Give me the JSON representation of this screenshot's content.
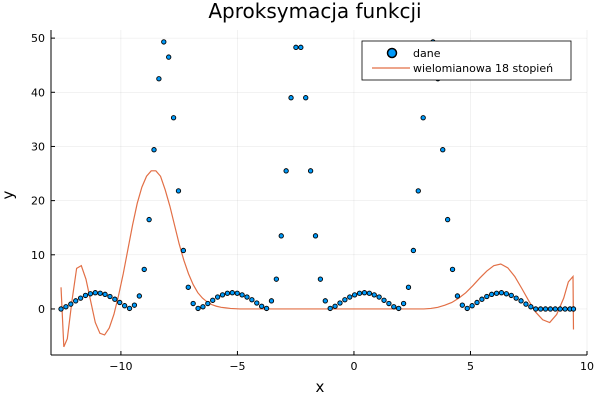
{
  "chart_data": {
    "type": "scatter",
    "title": "Aproksymacja funkcji",
    "xlabel": "x",
    "ylabel": "y",
    "xlim": [
      -13.0,
      10.0
    ],
    "ylim": [
      -8.5,
      51.5
    ],
    "xticks": [
      -10,
      -5,
      0,
      5,
      10
    ],
    "xtick_labels": [
      "−10",
      "−5",
      "0",
      "5",
      "10"
    ],
    "yticks": [
      0,
      10,
      20,
      30,
      40,
      50
    ],
    "ytick_labels": [
      "0",
      "10",
      "20",
      "30",
      "40",
      "50"
    ],
    "grid": true,
    "legend_position": "top-right",
    "colors": {
      "dane": "#009AFA",
      "fit": "#E26F46",
      "marker_edge": "#000000"
    },
    "series": [
      {
        "name": "dane",
        "kind": "scatter",
        "x": [
          -12.57,
          -12.36,
          -12.15,
          -11.94,
          -11.73,
          -11.52,
          -11.31,
          -11.1,
          -10.89,
          -10.68,
          -10.47,
          -10.26,
          -10.05,
          -9.84,
          -9.63,
          -9.42,
          -9.21,
          -9.0,
          -8.79,
          -8.58,
          -8.37,
          -8.16,
          -7.95,
          -7.74,
          -7.53,
          -7.32,
          -7.11,
          -6.9,
          -6.69,
          -6.48,
          -6.27,
          -6.06,
          -5.85,
          -5.64,
          -5.43,
          -5.22,
          -5.01,
          -4.8,
          -4.59,
          -4.38,
          -4.17,
          -3.96,
          -3.75,
          -3.54,
          -3.33,
          -3.12,
          -2.91,
          -2.7,
          -2.49,
          -2.28,
          -2.07,
          -1.86,
          -1.65,
          -1.44,
          -1.23,
          -1.02,
          -0.81,
          -0.6,
          -0.39,
          -0.18,
          0.03,
          0.24,
          0.45,
          0.66,
          0.87,
          1.08,
          1.29,
          1.5,
          1.71,
          1.92,
          2.13,
          2.34,
          2.55,
          2.76,
          2.97,
          3.18,
          3.39,
          3.6,
          3.81,
          4.02,
          4.23,
          4.44,
          4.65,
          4.86,
          5.07,
          5.28,
          5.49,
          5.7,
          5.91,
          6.12,
          6.33,
          6.54,
          6.75,
          6.96,
          7.17,
          7.38,
          7.59,
          7.8,
          8.01,
          8.22,
          8.43,
          8.64,
          8.85,
          9.06,
          9.27,
          9.42
        ],
        "y": [
          0,
          0.4,
          0.9,
          1.5,
          2.0,
          2.5,
          2.8,
          3.0,
          2.9,
          2.7,
          2.3,
          1.8,
          1.2,
          0.6,
          0.1,
          0.7,
          2.4,
          7.3,
          16.5,
          29.4,
          42.5,
          49.3,
          46.5,
          35.3,
          21.8,
          10.8,
          4.0,
          1.0,
          0.1,
          0.4,
          1.0,
          1.6,
          2.2,
          2.6,
          2.9,
          3.0,
          2.9,
          2.6,
          2.2,
          1.7,
          1.1,
          0.5,
          0.1,
          1.5,
          5.5,
          13.5,
          25.5,
          39.0,
          48.3,
          48.3,
          39.0,
          25.5,
          13.5,
          5.5,
          1.5,
          0.1,
          0.5,
          1.1,
          1.7,
          2.2,
          2.6,
          2.9,
          3.0,
          2.9,
          2.6,
          2.2,
          1.6,
          1.0,
          0.4,
          0.1,
          1.0,
          4.0,
          10.8,
          21.8,
          35.3,
          46.5,
          49.3,
          42.5,
          29.4,
          16.5,
          7.3,
          2.4,
          0.7,
          0.1,
          0.6,
          1.2,
          1.8,
          2.3,
          2.7,
          2.9,
          3.0,
          2.8,
          2.5,
          2.0,
          1.5,
          0.9,
          0.4,
          0.0,
          0,
          0,
          0,
          0,
          0,
          0,
          0,
          0
        ]
      },
      {
        "name": "wielomianowa 18 stopień",
        "kind": "line",
        "x": [
          -12.57,
          -12.45,
          -12.3,
          -12.1,
          -11.9,
          -11.7,
          -11.5,
          -11.3,
          -11.1,
          -10.9,
          -10.7,
          -10.5,
          -10.3,
          -10.1,
          -9.9,
          -9.7,
          -9.5,
          -9.3,
          -9.1,
          -8.9,
          -8.7,
          -8.5,
          -8.3,
          -8.1,
          -7.9,
          -7.7,
          -7.5,
          -7.3,
          -7.1,
          -6.9,
          -6.7,
          -6.5,
          -6.3,
          -6.1,
          -5.9,
          -5.7,
          -5.5,
          -5.3,
          -5.1,
          -4.9,
          -4.7,
          -4.5,
          -4.3,
          -4.1,
          -3.9,
          -3.7,
          -3.5,
          -3.3,
          -3.1,
          -2.9,
          -2.7,
          -2.5,
          -2.0,
          -1.5,
          -1.0,
          -0.5,
          0.0,
          0.5,
          1.0,
          1.5,
          2.0,
          2.5,
          3.0,
          3.3,
          3.6,
          3.9,
          4.2,
          4.5,
          4.8,
          5.1,
          5.4,
          5.7,
          6.0,
          6.3,
          6.6,
          6.9,
          7.2,
          7.5,
          7.8,
          8.1,
          8.4,
          8.7,
          9.0,
          9.2,
          9.4,
          9.42
        ],
        "y": [
          4.0,
          -7.0,
          -5.5,
          1.5,
          7.5,
          8.0,
          5.5,
          1.5,
          -2.5,
          -4.5,
          -4.8,
          -3.5,
          -1.0,
          2.5,
          6.5,
          11.0,
          15.5,
          19.5,
          22.5,
          24.5,
          25.5,
          25.5,
          24.5,
          22.0,
          19.0,
          15.5,
          12.0,
          9.0,
          6.5,
          4.5,
          3.0,
          2.0,
          1.3,
          0.8,
          0.5,
          0.3,
          0.2,
          0.1,
          0.05,
          0,
          0,
          0,
          0,
          0,
          0,
          0,
          0,
          0,
          0,
          0,
          0,
          0,
          0,
          0,
          0,
          0,
          0,
          0,
          0,
          0,
          0,
          0,
          0,
          0.1,
          0.3,
          0.7,
          1.2,
          2.0,
          3.0,
          4.3,
          5.7,
          7.0,
          8.0,
          8.3,
          7.6,
          6.0,
          3.8,
          1.5,
          -0.6,
          -2.0,
          -2.5,
          -1.0,
          2.0,
          5.0,
          6.0,
          -3.8
        ]
      }
    ]
  }
}
